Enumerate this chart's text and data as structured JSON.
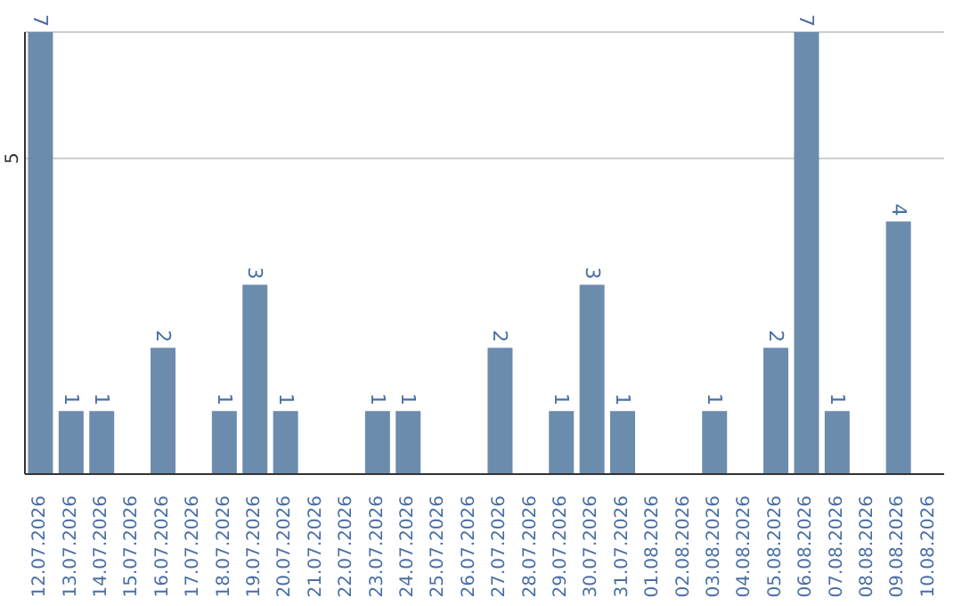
{
  "chart_data": {
    "type": "bar",
    "categories": [
      "12.07.2026",
      "13.07.2026",
      "14.07.2026",
      "15.07.2026",
      "16.07.2026",
      "17.07.2026",
      "18.07.2026",
      "19.07.2026",
      "20.07.2026",
      "21.07.2026",
      "22.07.2026",
      "23.07.2026",
      "24.07.2026",
      "25.07.2026",
      "26.07.2026",
      "27.07.2026",
      "28.07.2026",
      "29.07.2026",
      "30.07.2026",
      "31.07.2026",
      "01.08.2026",
      "02.08.2026",
      "03.08.2026",
      "04.08.2026",
      "05.08.2026",
      "06.08.2026",
      "07.08.2026",
      "08.08.2026",
      "09.08.2026",
      "10.08.2026"
    ],
    "values": [
      7,
      1,
      1,
      0,
      2,
      0,
      1,
      3,
      1,
      0,
      0,
      1,
      1,
      0,
      0,
      2,
      0,
      1,
      3,
      1,
      0,
      0,
      1,
      0,
      2,
      7,
      1,
      0,
      4,
      0
    ],
    "value_labels": [
      "7",
      "1",
      "1",
      null,
      "2",
      null,
      "1",
      "3",
      "1",
      null,
      null,
      "1",
      "1",
      null,
      null,
      "2",
      null,
      "1",
      "3",
      "1",
      null,
      null,
      "1",
      null,
      "2",
      "7",
      "1",
      null,
      "4",
      null
    ],
    "color": "#6c8cae",
    "ylim": [
      0,
      7
    ],
    "yticks": [
      5
    ],
    "grid": "y"
  }
}
